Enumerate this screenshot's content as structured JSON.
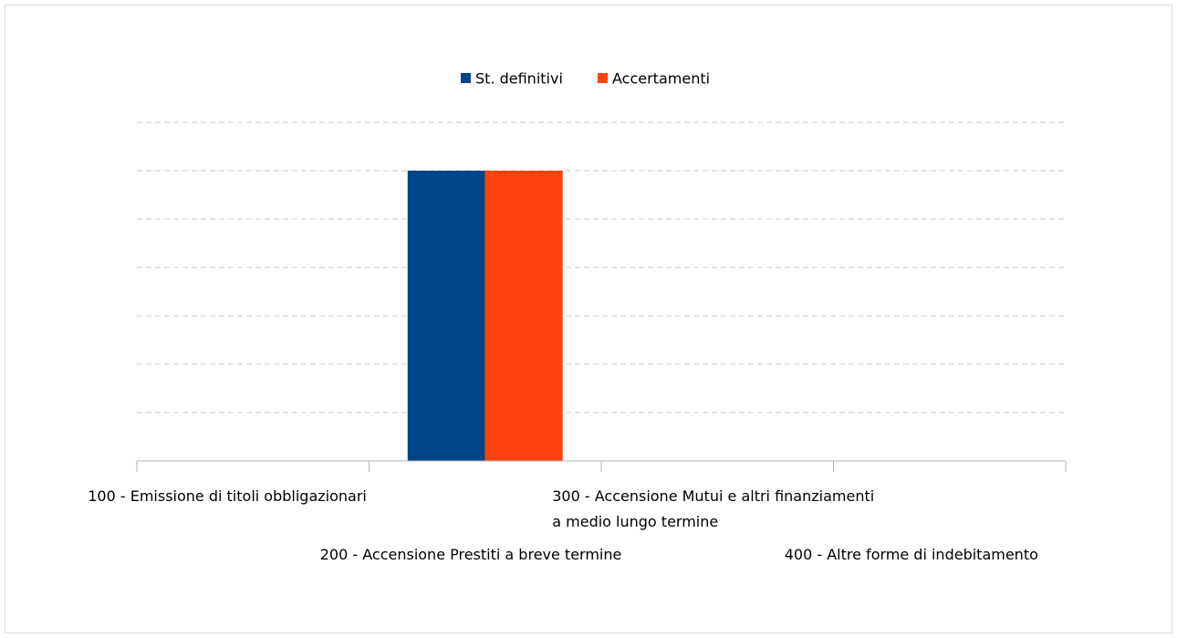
{
  "chart_data": {
    "type": "bar",
    "categories": [
      "100 - Emissione di titoli obbligazionari",
      "200 - Accensione Prestiti a breve termine",
      "300 - Accensione Mutui e altri finanziamenti a medio lungo termine",
      "400 - Altre forme di indebitamento"
    ],
    "series": [
      {
        "name": "St. definitivi",
        "color": "#004586",
        "values": [
          0,
          6,
          0,
          0
        ]
      },
      {
        "name": "Accertamenti",
        "color": "#ff420e",
        "values": [
          0,
          6,
          0,
          0
        ]
      }
    ],
    "ylim": [
      0,
      7
    ],
    "yticks": [
      0,
      1,
      2,
      3,
      4,
      5,
      6,
      7
    ],
    "grid": true,
    "legend": "top"
  }
}
